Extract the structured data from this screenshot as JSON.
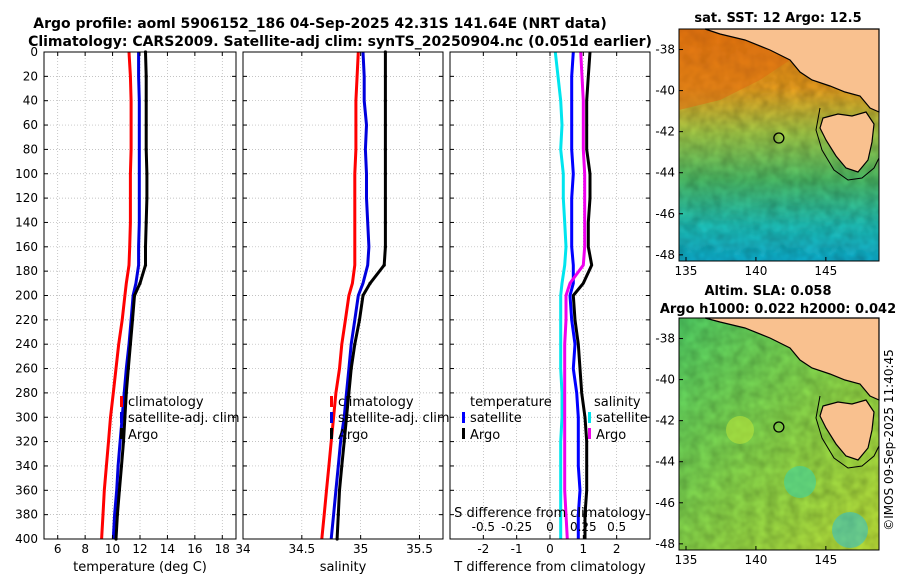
{
  "header": {
    "line1": "Argo profile: aoml 5906152_186 04-Sep-2025 42.31S 141.64E (NRT data)",
    "line2": "Climatology: CARS2009. Satellite-adj clim: synTS_20250904.nc (0.051d earlier)"
  },
  "sst_map": {
    "title": "sat. SST: 12 Argo: 12.5",
    "xticks": [
      135,
      140,
      145
    ],
    "yticks": [
      -38,
      -40,
      -42,
      -44,
      -46,
      -48
    ],
    "lon_range": [
      134.5,
      148.8
    ],
    "lat_range": [
      -37.0,
      -48.3
    ],
    "float_lon": 141.64,
    "float_lat": -42.31
  },
  "sla_map": {
    "title1": "Altim. SLA: 0.058",
    "title2": "Argo h1000: 0.022 h2000: 0.042",
    "xticks": [
      135,
      140,
      145
    ],
    "yticks": [
      -38,
      -40,
      -42,
      -44,
      -46,
      -48
    ],
    "lon_range": [
      134.5,
      148.8
    ],
    "lat_range": [
      -37.0,
      -48.3
    ],
    "float_lon": 141.64,
    "float_lat": -42.31
  },
  "watermark": "©IMOS 09-Sep-2025 11:40:45",
  "colors": {
    "climatology": "#ff0000",
    "satellite_adj": "#0000dd",
    "argo": "#000000",
    "diff_temperature": "#0000ff",
    "diff_salinity_sat": "#00e5ee",
    "diff_salinity_argo": "#ee00ee",
    "land": "#f9c18f"
  },
  "chart_data": [
    {
      "type": "line",
      "name": "temperature-profile",
      "xlabel": "temperature (deg C)",
      "ylabel": "",
      "xlim": [
        5,
        19
      ],
      "ylim": [
        400,
        0
      ],
      "xticks": [
        6,
        8,
        10,
        12,
        14,
        16,
        18
      ],
      "yticks": [
        0,
        20,
        40,
        60,
        80,
        100,
        120,
        140,
        160,
        180,
        200,
        220,
        240,
        260,
        280,
        300,
        320,
        340,
        360,
        380,
        400
      ],
      "grid": true,
      "legend": [
        "climatology",
        "satellite-adj. clim",
        "Argo"
      ],
      "depth": [
        0,
        20,
        40,
        60,
        80,
        100,
        120,
        140,
        160,
        175,
        190,
        200,
        220,
        240,
        260,
        280,
        300,
        320,
        340,
        360,
        380,
        400
      ],
      "series": [
        {
          "name": "climatology",
          "values": [
            11.2,
            11.3,
            11.35,
            11.35,
            11.35,
            11.3,
            11.3,
            11.3,
            11.25,
            11.2,
            11.0,
            10.9,
            10.7,
            10.45,
            10.25,
            10.05,
            9.85,
            9.7,
            9.55,
            9.4,
            9.3,
            9.2
          ]
        },
        {
          "name": "satellite-adj. clim",
          "values": [
            11.9,
            11.9,
            11.95,
            11.95,
            11.95,
            11.95,
            11.95,
            11.95,
            11.9,
            11.9,
            11.7,
            11.5,
            11.35,
            11.2,
            11.0,
            10.85,
            10.7,
            10.55,
            10.4,
            10.3,
            10.15,
            10.05
          ]
        },
        {
          "name": "Argo",
          "values": [
            12.4,
            12.45,
            12.45,
            12.45,
            12.45,
            12.5,
            12.5,
            12.45,
            12.4,
            12.4,
            12.0,
            11.6,
            11.45,
            11.3,
            11.15,
            11.0,
            10.9,
            10.8,
            10.65,
            10.5,
            10.35,
            10.25
          ]
        }
      ]
    },
    {
      "type": "line",
      "name": "salinity-profile",
      "xlabel": "salinity",
      "ylabel": "",
      "xlim": [
        34.0,
        35.7
      ],
      "ylim": [
        400,
        0
      ],
      "xticks": [
        34,
        34.5,
        35,
        35.5
      ],
      "xtick_labels": [
        "34",
        "34.5",
        "35",
        "35.5"
      ],
      "grid": true,
      "legend": [
        "climatology",
        "satellite-adj. clim",
        "Argo"
      ],
      "depth": [
        0,
        20,
        40,
        60,
        80,
        100,
        120,
        140,
        160,
        175,
        190,
        200,
        220,
        240,
        260,
        280,
        300,
        320,
        340,
        360,
        380,
        400
      ],
      "series": [
        {
          "name": "climatology",
          "values": [
            34.98,
            34.97,
            34.96,
            34.96,
            34.96,
            34.95,
            34.95,
            34.95,
            34.95,
            34.95,
            34.93,
            34.9,
            34.87,
            34.84,
            34.82,
            34.79,
            34.77,
            34.75,
            34.73,
            34.71,
            34.69,
            34.67
          ]
        },
        {
          "name": "satellite-adj. clim",
          "values": [
            35.02,
            35.03,
            35.03,
            35.05,
            35.04,
            35.05,
            35.05,
            35.06,
            35.07,
            35.06,
            35.02,
            34.98,
            34.95,
            34.92,
            34.9,
            34.88,
            34.86,
            34.83,
            34.81,
            34.79,
            34.77,
            34.75
          ]
        },
        {
          "name": "Argo",
          "values": [
            35.21,
            35.21,
            35.21,
            35.21,
            35.21,
            35.21,
            35.21,
            35.21,
            35.21,
            35.2,
            35.08,
            35.02,
            34.99,
            34.95,
            34.92,
            34.9,
            34.88,
            34.86,
            34.84,
            34.82,
            34.81,
            34.8
          ]
        }
      ]
    },
    {
      "type": "line",
      "name": "difference-profile",
      "xlabel": "T difference from climatology",
      "xlabel_top": "S difference from climatology",
      "ylabel": "",
      "xlim": [
        -3,
        3
      ],
      "ylim": [
        400,
        0
      ],
      "xticks": [
        -2,
        -1,
        0,
        1,
        2
      ],
      "xtick_labels_bottom": [
        "-2",
        "-1",
        "0",
        "1",
        "2"
      ],
      "xticks_top_values": [
        -0.5,
        -0.25,
        0,
        0.25,
        0.5
      ],
      "xtick_labels_top": [
        "-0.5",
        "-0.25",
        "0",
        "0.25",
        "0.5"
      ],
      "grid": true,
      "legend_left_title": "temperature",
      "legend_left": [
        "satellite",
        "Argo"
      ],
      "legend_right_title": "salinity",
      "legend_right": [
        "satellite",
        "Argo"
      ],
      "depth": [
        0,
        20,
        40,
        60,
        80,
        100,
        120,
        140,
        160,
        175,
        190,
        200,
        220,
        240,
        260,
        280,
        300,
        320,
        340,
        360,
        380,
        400
      ],
      "series": [
        {
          "name": "temperature satellite",
          "values": [
            0.7,
            0.65,
            0.65,
            0.65,
            0.65,
            0.7,
            0.65,
            0.65,
            0.65,
            0.7,
            0.7,
            0.6,
            0.65,
            0.75,
            0.7,
            0.8,
            0.85,
            0.85,
            0.85,
            0.9,
            0.85,
            0.85
          ]
        },
        {
          "name": "temperature Argo",
          "values": [
            1.2,
            1.15,
            1.1,
            1.1,
            1.1,
            1.2,
            1.2,
            1.15,
            1.15,
            1.25,
            1.0,
            0.7,
            0.75,
            0.85,
            0.9,
            0.95,
            1.05,
            1.1,
            1.1,
            1.1,
            1.05,
            1.05
          ]
        },
        {
          "name": "salinity satellite",
          "values": [
            0.04,
            0.06,
            0.08,
            0.09,
            0.08,
            0.1,
            0.1,
            0.11,
            0.12,
            0.11,
            0.09,
            0.08,
            0.08,
            0.08,
            0.08,
            0.09,
            0.09,
            0.08,
            0.08,
            0.08,
            0.08,
            0.08
          ]
        },
        {
          "name": "salinity Argo",
          "values": [
            0.23,
            0.24,
            0.25,
            0.25,
            0.25,
            0.26,
            0.26,
            0.26,
            0.26,
            0.25,
            0.15,
            0.12,
            0.12,
            0.11,
            0.11,
            0.11,
            0.11,
            0.11,
            0.11,
            0.11,
            0.12,
            0.13
          ]
        }
      ]
    }
  ]
}
